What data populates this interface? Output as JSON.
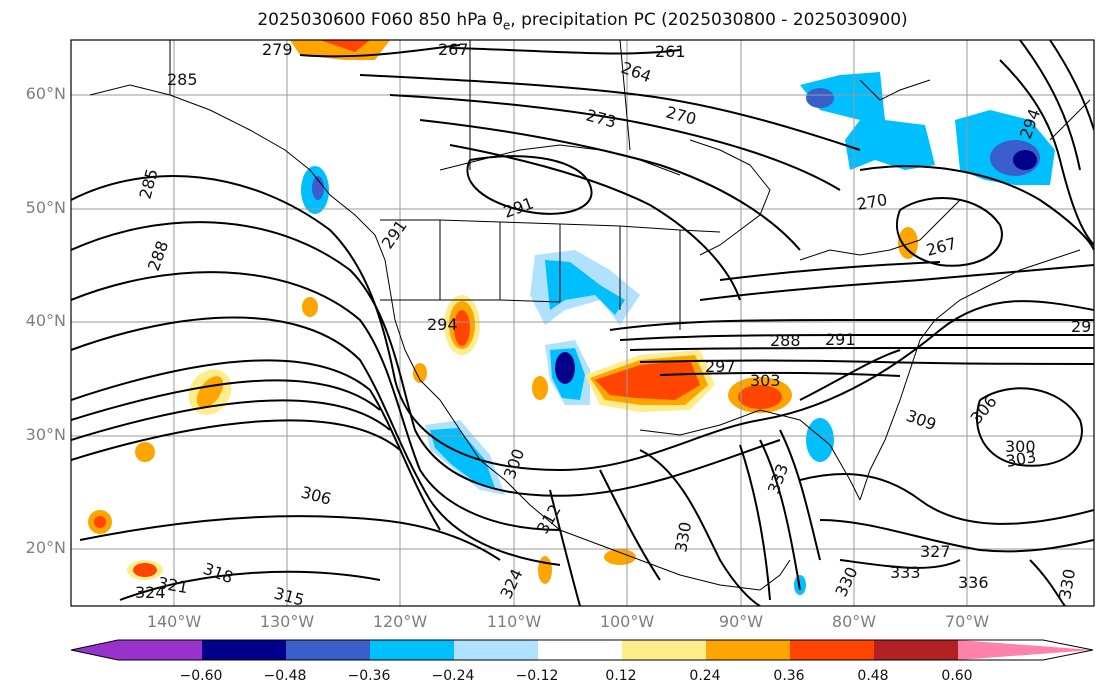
{
  "title": {
    "prefix": "2025030600 F060 850 hPa θ",
    "sub": "e",
    "suffix": ", precipitation PC (2025030800 - 2025030900)"
  },
  "axes": {
    "lat_labels": [
      "60°N",
      "50°N",
      "40°N",
      "30°N",
      "20°N"
    ],
    "lon_labels": [
      "140°W",
      "130°W",
      "120°W",
      "110°W",
      "100°W",
      "90°W",
      "80°W",
      "70°W"
    ]
  },
  "contour_labels": [
    "267",
    "261",
    "264",
    "279",
    "285",
    "273",
    "270",
    "285",
    "291",
    "288",
    "291",
    "294",
    "288",
    "291",
    "297",
    "303",
    "306",
    "309",
    "300",
    "303",
    "306",
    "300",
    "333",
    "312",
    "330",
    "324",
    "330",
    "333",
    "336",
    "330",
    "321",
    "324",
    "318",
    "315",
    "327",
    "270",
    "267",
    "294",
    "29"
  ],
  "colorbar": {
    "ticks": [
      "−0.60",
      "−0.48",
      "−0.36",
      "−0.24",
      "−0.12",
      "0.12",
      "0.24",
      "0.36",
      "0.48",
      "0.60"
    ],
    "colors": [
      "#9932cc",
      "#00008b",
      "#3a5fcd",
      "#00bfff",
      "#b0e2ff",
      "#ffffff",
      "#ffec8b",
      "#ffa500",
      "#ff4500",
      "#b22222",
      "#ff82ab"
    ]
  }
}
